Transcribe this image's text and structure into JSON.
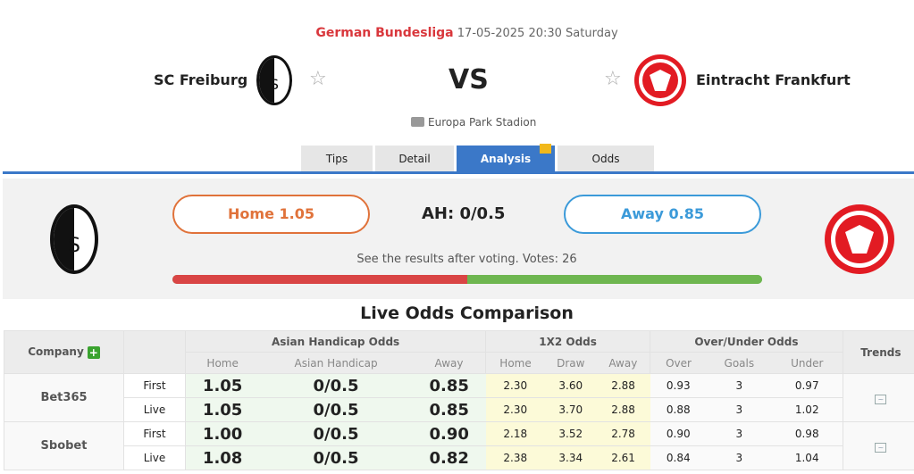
{
  "match": {
    "league": "German Bundesliga",
    "datetime": "17-05-2025 20:30 Saturday",
    "home": "SC Freiburg",
    "away": "Eintracht Frankfurt",
    "vs": "VS",
    "venue": "Europa Park Stadion"
  },
  "tabs": [
    {
      "label": "Tips"
    },
    {
      "label": "Detail"
    },
    {
      "label": "Analysis",
      "active": true
    },
    {
      "label": "Odds"
    }
  ],
  "vote": {
    "home": "Home 1.05",
    "ah": "AH: 0/0.5",
    "away": "Away 0.85",
    "note": "See the results after voting. Votes: 26",
    "home_share_percent": 50,
    "home_color": "#d94545",
    "away_color": "#6eb650",
    "home_border": "#e0723a",
    "away_border": "#3b9ad9"
  },
  "odds": {
    "title": "Live Odds Comparison",
    "company_header": "Company",
    "groups": [
      "Asian Handicap Odds",
      "1X2 Odds",
      "Over/Under Odds",
      "Trends"
    ],
    "subheaders": [
      "Home",
      "Asian Handicap",
      "Away",
      "Home",
      "Draw",
      "Away",
      "Over",
      "Goals",
      "Under"
    ],
    "rows": [
      {
        "company": "Bet365",
        "lines": [
          {
            "type": "First",
            "v": [
              "1.05",
              "0/0.5",
              "0.85",
              "2.30",
              "3.60",
              "2.88",
              "0.93",
              "3",
              "0.97"
            ]
          },
          {
            "type": "Live",
            "v": [
              "1.05",
              "0/0.5",
              "0.85",
              "2.30",
              "3.70",
              "2.88",
              "0.88",
              "3",
              "1.02"
            ]
          }
        ]
      },
      {
        "company": "Sbobet",
        "lines": [
          {
            "type": "First",
            "v": [
              "1.00",
              "0/0.5",
              "0.90",
              "2.18",
              "3.52",
              "2.78",
              "0.90",
              "3",
              "0.98"
            ]
          },
          {
            "type": "Live",
            "v": [
              "1.08",
              "0/0.5",
              "0.82",
              "2.38",
              "3.34",
              "2.61",
              "0.84",
              "3",
              "1.04"
            ]
          }
        ]
      }
    ]
  },
  "icons": {
    "star": "star-outline-icon",
    "venue": "stadium-icon",
    "gift": "gift-icon",
    "plus": "plus-icon",
    "trend": "trend-chart-icon"
  }
}
